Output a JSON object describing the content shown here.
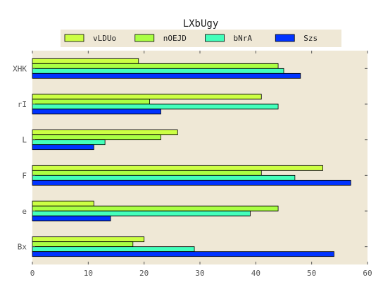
{
  "chart_data": {
    "type": "bar",
    "orientation": "horizontal",
    "title": "LXbUgy",
    "xlabel": "",
    "ylabel": "",
    "xlim": [
      0,
      60
    ],
    "x_ticks": [
      0,
      10,
      20,
      30,
      40,
      50,
      60
    ],
    "grid": false,
    "legend_position": "top",
    "categories": [
      "XHK",
      "rI",
      "L",
      "F",
      "e",
      "Bx"
    ],
    "series": [
      {
        "name": "vLDUo",
        "color": "#ccff44",
        "values": [
          19,
          41,
          26,
          52,
          11,
          20
        ]
      },
      {
        "name": "nOEJD",
        "color": "#aaff44",
        "values": [
          44,
          21,
          23,
          41,
          44,
          18
        ]
      },
      {
        "name": "bNrA",
        "color": "#44ffbb",
        "values": [
          45,
          44,
          13,
          47,
          39,
          29
        ]
      },
      {
        "name": "Szs",
        "color": "#0033ff",
        "values": [
          48,
          23,
          11,
          57,
          14,
          54
        ]
      }
    ],
    "plot_background": "#efe8d6"
  }
}
